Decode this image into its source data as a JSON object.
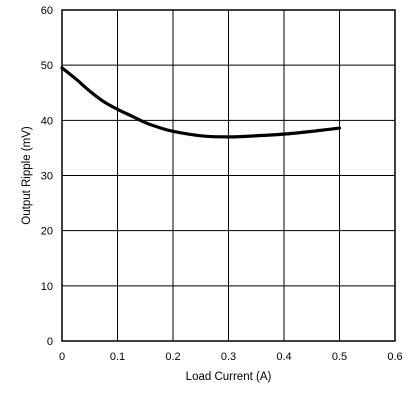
{
  "chart_data": {
    "type": "line",
    "xlabel": "Load Current (A)",
    "ylabel": "Output Ripple (mV)",
    "xlim": [
      0,
      0.6
    ],
    "ylim": [
      0,
      60
    ],
    "xticks": [
      "0",
      "0.1",
      "0.2",
      "0.3",
      "0.4",
      "0.5",
      "0.6"
    ],
    "yticks": [
      "0",
      "10",
      "20",
      "30",
      "40",
      "50",
      "60"
    ],
    "grid": true,
    "series": [
      {
        "color": "#000000",
        "x": [
          0,
          0.025,
          0.05,
          0.075,
          0.1,
          0.125,
          0.15,
          0.175,
          0.2,
          0.25,
          0.3,
          0.35,
          0.4,
          0.45,
          0.5
        ],
        "y": [
          49.5,
          47.5,
          45.3,
          43.4,
          42.0,
          40.8,
          39.6,
          38.7,
          38.0,
          37.2,
          37.0,
          37.2,
          37.5,
          38.0,
          38.6
        ]
      }
    ]
  }
}
